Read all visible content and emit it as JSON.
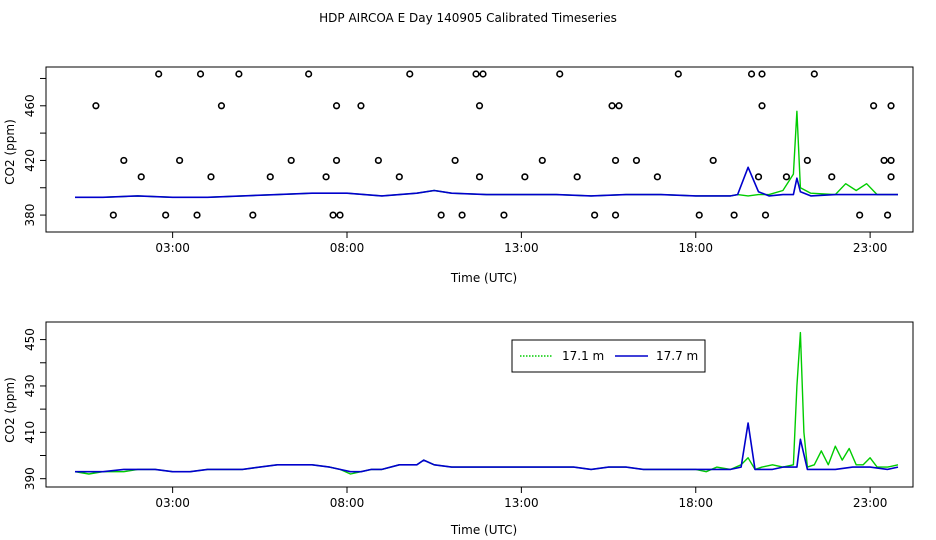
{
  "title": "HDP AIRCOA E  Day 140905  Calibrated Timeseries",
  "colors": {
    "series1": "#00cc00",
    "series2": "#0000cc",
    "flags": "#000000"
  },
  "chart_data": [
    {
      "type": "line",
      "xlabel": "Time (UTC)",
      "ylabel": "CO2 (ppm)",
      "xlim": [
        0,
        24
      ],
      "ylim": [
        372,
        484
      ],
      "xticks": [
        3,
        8,
        13,
        18,
        23
      ],
      "xtick_labels": [
        "03:00",
        "08:00",
        "13:00",
        "18:00",
        "23:00"
      ],
      "yticks": [
        380,
        420,
        460
      ],
      "yticks_extra_marks": [
        400,
        440,
        480
      ],
      "ytick_labels": [
        "380",
        "420",
        "460"
      ],
      "series": [
        {
          "color": "#00cc00",
          "x": [
            0.2,
            1,
            2,
            3,
            4,
            5,
            6,
            7,
            8,
            8.5,
            9,
            10,
            10.5,
            11,
            12,
            13,
            14,
            15,
            16,
            17,
            18,
            18.5,
            19,
            19.2,
            19.5,
            19.8,
            20.1,
            20.5,
            20.8,
            20.9,
            21,
            21.3,
            22,
            22.3,
            22.6,
            22.9,
            23.2,
            23.5,
            23.8
          ],
          "y": [
            393,
            393,
            394,
            393,
            393,
            394,
            395,
            396,
            396,
            395,
            394,
            396,
            398,
            396,
            395,
            395,
            395,
            394,
            395,
            395,
            394,
            394,
            394,
            395,
            394,
            395,
            395,
            398,
            410,
            456,
            400,
            396,
            395,
            403,
            398,
            403,
            395,
            395,
            395
          ]
        },
        {
          "color": "#0000cc",
          "x": [
            0.2,
            1,
            2,
            3,
            4,
            5,
            6,
            7,
            8,
            8.5,
            9,
            10,
            10.5,
            11,
            12,
            13,
            14,
            15,
            16,
            17,
            18,
            18.5,
            19,
            19.2,
            19.5,
            19.8,
            20.1,
            20.5,
            20.8,
            20.9,
            21,
            21.3,
            22,
            22.5,
            23,
            23.5,
            23.8
          ],
          "y": [
            393,
            393,
            394,
            393,
            393,
            394,
            395,
            396,
            396,
            395,
            394,
            396,
            398,
            396,
            395,
            395,
            395,
            394,
            395,
            395,
            394,
            394,
            394,
            395,
            415,
            397,
            394,
            395,
            395,
            407,
            397,
            394,
            395,
            395,
            395,
            395,
            395
          ]
        }
      ],
      "flags": {
        "x": [
          1.3,
          0.8,
          1.6,
          2.1,
          2.6,
          2.8,
          3.2,
          3.7,
          3.8,
          4.1,
          4.4,
          4.9,
          5.3,
          5.8,
          6.4,
          6.9,
          7.4,
          7.6,
          7.7,
          7.7,
          7.8,
          8.4,
          8.9,
          9.5,
          9.8,
          10.7,
          11.1,
          11.3,
          11.7,
          11.8,
          11.8,
          11.9,
          12.5,
          13.1,
          13.6,
          14.1,
          14.6,
          15.1,
          15.6,
          15.7,
          15.7,
          15.8,
          16.3,
          16.9,
          17.5,
          18.1,
          18.5,
          19.1,
          19.6,
          19.8,
          19.9,
          19.9,
          20.0,
          20.6,
          21.2,
          21.4,
          21.9,
          22.7,
          23.1,
          23.4,
          23.5,
          23.6,
          23.6,
          23.6
        ]
      }
    },
    {
      "type": "line",
      "xlabel": "Time (UTC)",
      "ylabel": "CO2 (ppm)",
      "xlim": [
        0,
        24
      ],
      "ylim": [
        389,
        455
      ],
      "xticks": [
        3,
        8,
        13,
        18,
        23
      ],
      "xtick_labels": [
        "03:00",
        "08:00",
        "13:00",
        "18:00",
        "23:00"
      ],
      "yticks": [
        390,
        410,
        430,
        450
      ],
      "yticks_extra_marks": [
        400,
        420,
        440
      ],
      "ytick_labels": [
        "390",
        "410",
        "430",
        "450"
      ],
      "legend": {
        "placement": "top-right",
        "entries": [
          {
            "label": "17.1 m",
            "color": "#00cc00",
            "style": "dotted"
          },
          {
            "label": "17.7 m",
            "color": "#0000cc",
            "style": "solid"
          }
        ]
      },
      "series": [
        {
          "name": "17.1 m",
          "color": "#00cc00",
          "x": [
            0.2,
            0.6,
            1,
            1.6,
            2,
            2.5,
            3,
            3.5,
            4,
            4.5,
            5,
            5.5,
            6,
            6.5,
            7,
            7.5,
            7.8,
            8.1,
            8.4,
            8.7,
            9,
            9.5,
            10,
            10.2,
            10.5,
            11,
            11.5,
            12,
            12.5,
            13,
            13.5,
            14,
            14.5,
            15,
            15.5,
            16,
            16.5,
            17,
            17.5,
            18,
            18.3,
            18.6,
            19,
            19.3,
            19.5,
            19.7,
            19.9,
            20.2,
            20.5,
            20.8,
            20.9,
            21,
            21.1,
            21.2,
            21.4,
            21.6,
            21.8,
            22,
            22.2,
            22.4,
            22.6,
            22.8,
            23,
            23.2,
            23.5,
            23.8
          ],
          "y": [
            393,
            392,
            393,
            393,
            394,
            394,
            393,
            393,
            394,
            394,
            394,
            395,
            396,
            396,
            396,
            395,
            394,
            392,
            393,
            394,
            394,
            396,
            396,
            398,
            396,
            395,
            395,
            395,
            395,
            395,
            395,
            395,
            395,
            394,
            395,
            395,
            394,
            394,
            394,
            394,
            393,
            395,
            394,
            396,
            399,
            394,
            395,
            396,
            395,
            396,
            430,
            453,
            410,
            395,
            396,
            402,
            396,
            404,
            398,
            403,
            396,
            396,
            399,
            395,
            395,
            396
          ]
        },
        {
          "name": "17.7 m",
          "color": "#0000cc",
          "x": [
            0.2,
            0.6,
            1,
            1.6,
            2,
            2.5,
            3,
            3.5,
            4,
            4.5,
            5,
            5.5,
            6,
            6.5,
            7,
            7.5,
            7.8,
            8.1,
            8.4,
            8.7,
            9,
            9.5,
            10,
            10.2,
            10.5,
            11,
            11.5,
            12,
            12.5,
            13,
            13.5,
            14,
            14.5,
            15,
            15.5,
            16,
            16.5,
            17,
            17.5,
            18,
            18.3,
            18.6,
            19,
            19.3,
            19.5,
            19.7,
            19.9,
            20.2,
            20.5,
            20.8,
            20.9,
            21,
            21.2,
            21.5,
            22,
            22.5,
            23,
            23.5,
            23.8
          ],
          "y": [
            393,
            393,
            393,
            394,
            394,
            394,
            393,
            393,
            394,
            394,
            394,
            395,
            396,
            396,
            396,
            395,
            394,
            393,
            393,
            394,
            394,
            396,
            396,
            398,
            396,
            395,
            395,
            395,
            395,
            395,
            395,
            395,
            395,
            394,
            395,
            395,
            394,
            394,
            394,
            394,
            394,
            394,
            394,
            395,
            414,
            394,
            394,
            394,
            395,
            395,
            395,
            407,
            394,
            394,
            394,
            395,
            395,
            394,
            395
          ]
        }
      ]
    }
  ]
}
